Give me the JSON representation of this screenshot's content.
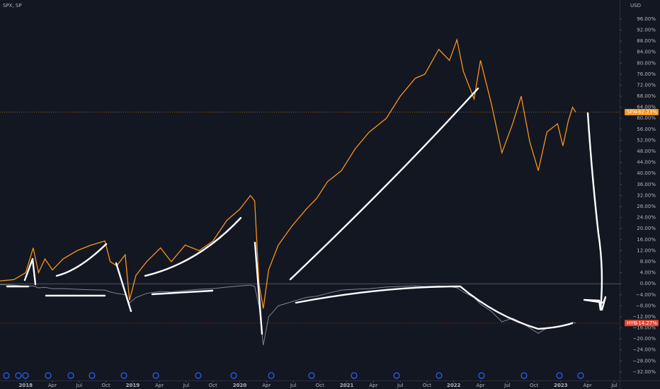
{
  "chart_data": {
    "type": "line",
    "title": "SPX, SP",
    "currency": "USD",
    "x": [
      2017.76,
      2017.89,
      2018.0,
      2018.07,
      2018.12,
      2018.18,
      2018.25,
      2018.35,
      2018.48,
      2018.61,
      2018.74,
      2018.79,
      2018.85,
      2018.93,
      2018.97,
      2019.03,
      2019.13,
      2019.26,
      2019.36,
      2019.49,
      2019.62,
      2019.75,
      2019.88,
      2020.0,
      2020.1,
      2020.14,
      2020.18,
      2020.22,
      2020.27,
      2020.36,
      2020.49,
      2020.62,
      2020.72,
      2020.82,
      2020.95,
      2021.08,
      2021.21,
      2021.37,
      2021.5,
      2021.64,
      2021.73,
      2021.86,
      2021.96,
      2022.03,
      2022.09,
      2022.19,
      2022.25,
      2022.35,
      2022.45,
      2022.55,
      2022.63,
      2022.71,
      2022.79,
      2022.87,
      2022.97,
      2023.02,
      2023.07,
      2023.11,
      2023.14
    ],
    "series": [
      {
        "name": "SPX",
        "color": "#f7931a",
        "last_label": "+62.23%",
        "values": [
          1,
          1.5,
          4,
          13,
          4,
          9,
          5,
          9,
          12,
          14,
          15.5,
          8,
          6.5,
          10.5,
          -6,
          3,
          8,
          13,
          8,
          14,
          12,
          15.5,
          23,
          27,
          32,
          30,
          0,
          -9,
          5,
          14,
          21,
          27,
          31,
          37,
          41,
          49,
          55,
          60,
          68,
          74.5,
          76,
          85,
          81,
          88.5,
          77,
          67,
          81,
          65.5,
          47.5,
          58,
          68,
          51.5,
          41,
          55,
          58,
          50,
          59,
          64,
          62.23
        ]
      },
      {
        "name": "HYG",
        "color": "#e0462f",
        "line_color": "#7f8596",
        "last_label": "−14.27%",
        "values": [
          -0.3,
          -0.5,
          -1,
          -0.8,
          -1.5,
          -1.3,
          -1.8,
          -1.8,
          -2,
          -2.2,
          -2.3,
          -3,
          -3.5,
          -4,
          -7,
          -5,
          -3.5,
          -2.8,
          -3,
          -2.5,
          -2,
          -1.8,
          -1.2,
          -0.8,
          -0.5,
          -1,
          -8,
          -22.3,
          -12,
          -8,
          -6.5,
          -5,
          -4.5,
          -3.5,
          -2.3,
          -2,
          -1.8,
          -1.2,
          -1,
          -0.8,
          -1,
          -0.8,
          -1,
          -1.5,
          -3,
          -5,
          -7.4,
          -10,
          -13.8,
          -12.5,
          -14,
          -16,
          -18,
          -16,
          -15.5,
          -15,
          -14.5,
          -14,
          -14.27
        ]
      }
    ],
    "xlim": [
      2017.76,
      2023.55
    ],
    "ylim": [
      -35.1,
      102.9
    ],
    "grid": false,
    "xticks": [
      2018,
      {
        "value": 2018.25,
        "label": "Apr"
      },
      {
        "value": 2018.5,
        "label": "Jul"
      },
      {
        "value": 2018.75,
        "label": "Oct"
      },
      2019,
      {
        "value": 2019.25,
        "label": "Apr"
      },
      {
        "value": 2019.5,
        "label": "Jul"
      },
      {
        "value": 2019.75,
        "label": "Oct"
      },
      2020,
      {
        "value": 2020.25,
        "label": "Apr"
      },
      {
        "value": 2020.5,
        "label": "Jul"
      },
      {
        "value": 2020.75,
        "label": "Oct"
      },
      2021,
      {
        "value": 2021.25,
        "label": "Apr"
      },
      {
        "value": 2021.5,
        "label": "Jul"
      },
      {
        "value": 2021.75,
        "label": "Oct"
      },
      2022,
      {
        "value": 2022.25,
        "label": "Apr"
      },
      {
        "value": 2022.5,
        "label": "Jul"
      },
      {
        "value": 2022.75,
        "label": "Oct"
      },
      2023,
      {
        "value": 2023.25,
        "label": "Apr"
      },
      {
        "value": 2023.5,
        "label": "Jul"
      }
    ],
    "yticks": [
      {
        "value": 96,
        "label": "96.00%"
      },
      {
        "value": 92,
        "label": "92.00%"
      },
      {
        "value": 88,
        "label": "88.00%"
      },
      {
        "value": 84,
        "label": "84.00%"
      },
      {
        "value": 80,
        "label": "80.00%"
      },
      {
        "value": 76,
        "label": "76.00%"
      },
      {
        "value": 72,
        "label": "72.00%"
      },
      {
        "value": 68,
        "label": "68.00%"
      },
      {
        "value": 64,
        "label": "64.00%"
      },
      {
        "value": 60,
        "label": "60.00%"
      },
      {
        "value": 56,
        "label": "56.00%"
      },
      {
        "value": 52,
        "label": "52.00%"
      },
      {
        "value": 48,
        "label": "48.00%"
      },
      {
        "value": 44,
        "label": "44.00%"
      },
      {
        "value": 40,
        "label": "40.00%"
      },
      {
        "value": 36,
        "label": "36.00%"
      },
      {
        "value": 32,
        "label": "32.00%"
      },
      {
        "value": 28,
        "label": "28.00%"
      },
      {
        "value": 24,
        "label": "24.00%"
      },
      {
        "value": 20,
        "label": "20.00%"
      },
      {
        "value": 16,
        "label": "16.00%"
      },
      {
        "value": 12,
        "label": "12.00%"
      },
      {
        "value": 8,
        "label": "8.00%"
      },
      {
        "value": 4,
        "label": "4.00%"
      },
      {
        "value": 0,
        "label": "0.00%"
      },
      {
        "value": -4,
        "label": "−4.00%"
      },
      {
        "value": -8,
        "label": "−8.00%"
      },
      {
        "value": -12,
        "label": "−12.00%"
      },
      {
        "value": -16,
        "label": "−16.00%"
      },
      {
        "value": -20,
        "label": "−20.00%"
      },
      {
        "value": -24,
        "label": "−24.00%"
      },
      {
        "value": -28,
        "label": "−28.00%"
      },
      {
        "value": -32,
        "label": "−32.00%"
      }
    ]
  }
}
